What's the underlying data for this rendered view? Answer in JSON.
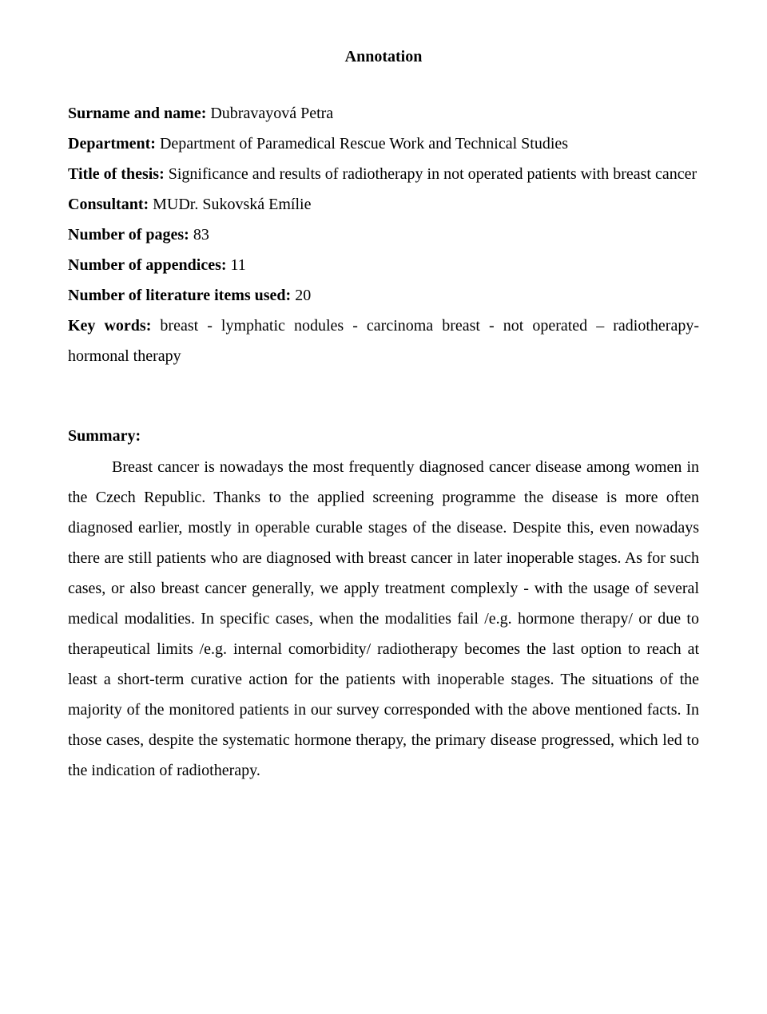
{
  "doc": {
    "background_color": "#ffffff",
    "text_color": "#000000",
    "font_family": "Times New Roman"
  },
  "title": "Annotation",
  "meta": {
    "surname_label": "Surname and name:",
    "surname_value": " Dubravayová Petra",
    "department_label": "Department:",
    "department_value": " Department of Paramedical Rescue Work and Technical Studies",
    "thesis_label": "Title of thesis:",
    "thesis_value": " Significance and results of radiotherapy in not operated patients with breast cancer",
    "consultant_label": "Consultant:",
    "consultant_value": " MUDr. Sukovská Emílie",
    "pages_label": "Number of pages:",
    "pages_value": " 83",
    "appendices_label": "Number of appendices:",
    "appendices_value": " 11",
    "literature_label": "Number of literature items used:",
    "literature_value": " 20",
    "keywords_label": "Key words:",
    "keywords_value": " breast - lymphatic nodules - carcinoma breast - not operated – radiotherapy- hormonal therapy"
  },
  "summary": {
    "heading": "Summary:",
    "body": "Breast cancer is nowadays the most frequently diagnosed cancer disease among women in the Czech Republic. Thanks to the applied screening programme the disease is more often diagnosed earlier, mostly in operable curable stages of the disease. Despite this, even nowadays there are still patients who are diagnosed with breast cancer in later inoperable stages. As for such cases, or also breast cancer generally, we apply treatment complexly - with the usage of several medical modalities. In specific cases, when the modalities fail /e.g. hormone therapy/ or due to therapeutical limits /e.g. internal comorbidity/ radiotherapy becomes the last option to reach at least a short-term curative action for the patients with inoperable stages. The situations of the majority of the monitored patients in our survey corresponded with the above mentioned facts. In those cases, despite the systematic hormone therapy, the primary disease progressed, which led to the indication of radiotherapy."
  }
}
